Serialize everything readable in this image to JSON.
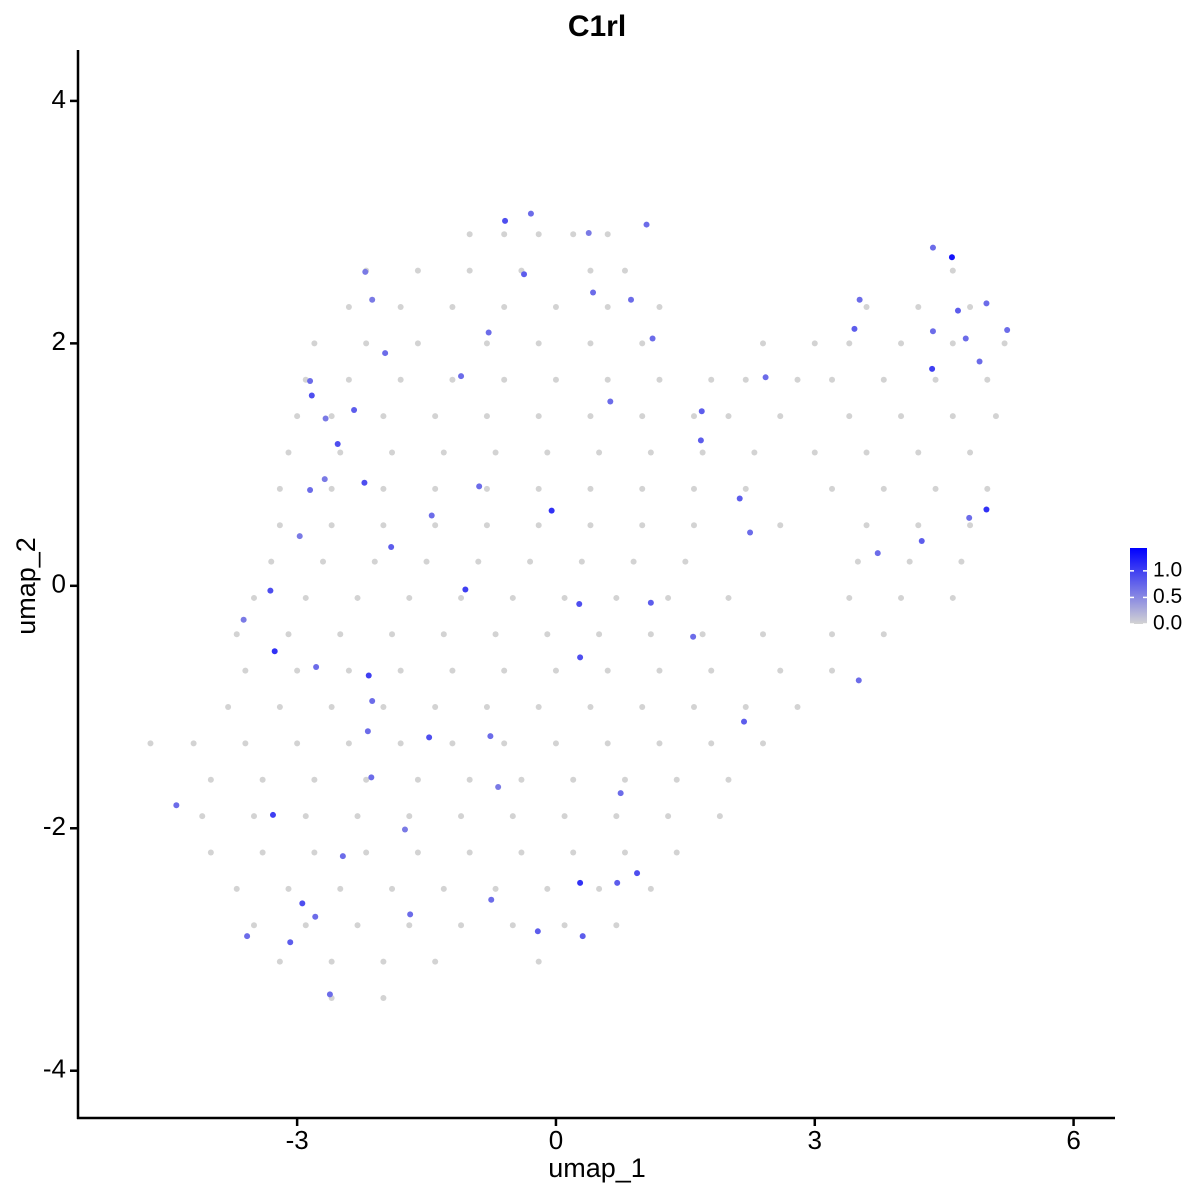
{
  "chart_data": {
    "type": "scatter",
    "title": "C1rl",
    "xlabel": "umap_1",
    "ylabel": "umap_2",
    "xlim": [
      -5.54,
      6.48
    ],
    "ylim": [
      -4.39,
      4.42
    ],
    "xticks": [
      -3,
      0,
      3,
      6
    ],
    "yticks": [
      -4,
      -2,
      0,
      2,
      4
    ],
    "grid": false,
    "colorbar": {
      "lim": [
        0,
        1.43
      ],
      "low_color": "#d3d3d3",
      "high_color": "#0000ff",
      "ticks": [
        {
          "value": 0,
          "label": "0.0"
        },
        {
          "value": 0.5,
          "label": "0.5"
        },
        {
          "value": 1,
          "label": "1.0"
        }
      ]
    },
    "x": [
      -1.0,
      -0.6,
      -0.2,
      0.2,
      0.6,
      -2.2,
      -1.6,
      -1.0,
      -0.4,
      0.4,
      0.8,
      4.6,
      -2.4,
      -1.8,
      -1.2,
      -0.6,
      0,
      0.6,
      1.2,
      3.6,
      4.2,
      4.8,
      -2.8,
      -2.2,
      -1.6,
      -0.8,
      -0.2,
      0.4,
      1.0,
      2.4,
      3.0,
      3.4,
      4.0,
      4.6,
      5.2,
      -2.9,
      -2.4,
      -1.8,
      -1.2,
      -0.6,
      0,
      0.6,
      1.2,
      1.8,
      2.2,
      2.8,
      3.2,
      3.8,
      4.4,
      5.0,
      -3.0,
      -2.6,
      -2.0,
      -1.4,
      -0.8,
      -0.2,
      0.4,
      1.0,
      1.6,
      2.0,
      2.6,
      3.4,
      4.0,
      4.6,
      5.1,
      -3.1,
      -2.5,
      -1.9,
      -1.3,
      -0.7,
      -0.1,
      0.5,
      1.1,
      1.7,
      2.3,
      3.0,
      3.6,
      4.2,
      4.8,
      -3.2,
      -2.6,
      -2.0,
      -1.4,
      -0.8,
      -0.2,
      0.4,
      1.0,
      1.6,
      2.2,
      3.2,
      3.8,
      4.4,
      5.0,
      -3.2,
      -2.6,
      -2.0,
      -1.4,
      -0.8,
      -0.2,
      0.4,
      1.0,
      1.6,
      2.6,
      3.6,
      4.2,
      4.8,
      -3.3,
      -2.7,
      -2.1,
      -1.5,
      -0.9,
      -0.3,
      0.3,
      0.9,
      1.5,
      3.5,
      4.1,
      4.7,
      -3.5,
      -2.9,
      -2.3,
      -1.7,
      -1.1,
      -0.5,
      0.1,
      0.7,
      1.3,
      2.0,
      3.4,
      4.0,
      4.6,
      -3.7,
      -3.1,
      -2.5,
      -1.9,
      -1.3,
      -0.7,
      -0.1,
      0.5,
      1.1,
      1.7,
      2.4,
      3.2,
      3.8,
      -3.6,
      -3.0,
      -2.4,
      -1.8,
      -1.2,
      -0.6,
      0,
      0.6,
      1.2,
      1.8,
      2.6,
      3.2,
      -3.8,
      -3.2,
      -2.6,
      -2.0,
      -1.4,
      -0.8,
      -0.2,
      0.4,
      1.0,
      1.6,
      2.2,
      2.8,
      -4.7,
      -4.2,
      -3.6,
      -3.0,
      -2.4,
      -1.8,
      -1.2,
      -0.6,
      0,
      0.6,
      1.2,
      1.8,
      2.4,
      -4.0,
      -3.4,
      -2.8,
      -2.2,
      -1.6,
      -1.0,
      -0.4,
      0.2,
      0.8,
      1.4,
      2.0,
      -4.1,
      -3.5,
      -2.9,
      -2.3,
      -1.7,
      -1.1,
      -0.5,
      0.1,
      0.7,
      1.3,
      1.9,
      -4.0,
      -3.4,
      -2.8,
      -2.2,
      -1.6,
      -1.0,
      -0.4,
      0.2,
      0.8,
      1.4,
      -3.7,
      -3.1,
      -2.5,
      -1.9,
      -1.3,
      -0.7,
      -0.1,
      0.5,
      1.1,
      -3.5,
      -2.9,
      -2.3,
      -1.7,
      -1.1,
      -0.5,
      0.1,
      0.7,
      -3.2,
      -2.6,
      -2.0,
      -1.4,
      -0.2,
      -2.6,
      -2.0,
      -0.59,
      -0.29,
      0.38,
      1.05,
      4.59,
      4.37,
      4.99,
      4.66,
      5.23,
      4.75,
      4.91,
      4.37,
      3.46,
      3.52,
      2.43,
      1.69,
      0.63,
      1.12,
      0.87,
      0.43,
      -0.37,
      -0.78,
      -1.1,
      -1.98,
      -2.13,
      -2.21,
      -2.85,
      -2.83,
      -2.67,
      -2.34,
      -2.53,
      -2.68,
      -2.85,
      -2.22,
      -1.44,
      -1.91,
      -2.97,
      -3.31,
      -3.62,
      -3.26,
      -2.78,
      -2.17,
      -2.13,
      -2.18,
      -1.47,
      -0.76,
      -0.67,
      -1.05,
      0.27,
      0.28,
      1.1,
      2.18,
      2.13,
      2.25,
      1.68,
      -0.05,
      -0.89,
      3.51,
      3.73,
      4.24,
      4.99,
      4.79,
      4.36,
      -4.4,
      -3.58,
      -3.08,
      -3.28,
      -2.94,
      -2.79,
      -2.62,
      -2.47,
      -2.14,
      -1.75,
      -1.69,
      -0.75,
      -0.21,
      0.28,
      0.31,
      0.71,
      0.94,
      0.75,
      1.59
    ],
    "values": [
      2.9,
      2.9,
      2.9,
      2.9,
      2.9,
      2.6,
      2.6,
      2.6,
      2.6,
      2.6,
      2.6,
      2.6,
      2.3,
      2.3,
      2.3,
      2.3,
      2.3,
      2.3,
      2.3,
      2.3,
      2.3,
      2.3,
      2.0,
      2.0,
      2.0,
      2.0,
      2.0,
      2.0,
      2.0,
      2.0,
      2.0,
      2.0,
      2.0,
      2.0,
      2.0,
      1.7,
      1.7,
      1.7,
      1.7,
      1.7,
      1.7,
      1.7,
      1.7,
      1.7,
      1.7,
      1.7,
      1.7,
      1.7,
      1.7,
      1.7,
      1.4,
      1.4,
      1.4,
      1.4,
      1.4,
      1.4,
      1.4,
      1.4,
      1.4,
      1.4,
      1.4,
      1.4,
      1.4,
      1.4,
      1.4,
      1.1,
      1.1,
      1.1,
      1.1,
      1.1,
      1.1,
      1.1,
      1.1,
      1.1,
      1.1,
      1.1,
      1.1,
      1.1,
      1.1,
      0.8,
      0.8,
      0.8,
      0.8,
      0.8,
      0.8,
      0.8,
      0.8,
      0.8,
      0.8,
      0.8,
      0.8,
      0.8,
      0.8,
      0.5,
      0.5,
      0.5,
      0.5,
      0.5,
      0.5,
      0.5,
      0.5,
      0.5,
      0.5,
      0.5,
      0.5,
      0.5,
      0.2,
      0.2,
      0.2,
      0.2,
      0.2,
      0.2,
      0.2,
      0.2,
      0.2,
      0.2,
      0.2,
      0.2,
      -0.1,
      -0.1,
      -0.1,
      -0.1,
      -0.1,
      -0.1,
      -0.1,
      -0.1,
      -0.1,
      -0.1,
      -0.1,
      -0.1,
      -0.1,
      -0.4,
      -0.4,
      -0.4,
      -0.4,
      -0.4,
      -0.4,
      -0.4,
      -0.4,
      -0.4,
      -0.4,
      -0.4,
      -0.4,
      -0.4,
      -0.7,
      -0.7,
      -0.7,
      -0.7,
      -0.7,
      -0.7,
      -0.7,
      -0.7,
      -0.7,
      -0.7,
      -0.7,
      -0.7,
      -1.0,
      -1.0,
      -1.0,
      -1.0,
      -1.0,
      -1.0,
      -1.0,
      -1.0,
      -1.0,
      -1.0,
      -1.0,
      -1.0,
      -1.3,
      -1.3,
      -1.3,
      -1.3,
      -1.3,
      -1.3,
      -1.3,
      -1.3,
      -1.3,
      -1.3,
      -1.3,
      -1.3,
      -1.3,
      -1.6,
      -1.6,
      -1.6,
      -1.6,
      -1.6,
      -1.6,
      -1.6,
      -1.6,
      -1.6,
      -1.6,
      -1.6,
      -1.9,
      -1.9,
      -1.9,
      -1.9,
      -1.9,
      -1.9,
      -1.9,
      -1.9,
      -1.9,
      -1.9,
      -1.9,
      -2.2,
      -2.2,
      -2.2,
      -2.2,
      -2.2,
      -2.2,
      -2.2,
      -2.2,
      -2.2,
      -2.2,
      -2.5,
      -2.5,
      -2.5,
      -2.5,
      -2.5,
      -2.5,
      -2.5,
      -2.5,
      -2.5,
      -2.8,
      -2.8,
      -2.8,
      -2.8,
      -2.8,
      -2.8,
      -2.8,
      -2.8,
      -3.1,
      -3.1,
      -3.1,
      -3.1,
      -3.1,
      -3.4,
      -3.4,
      3.01,
      3.07,
      2.91,
      2.98,
      2.71,
      2.79,
      2.33,
      2.27,
      2.11,
      2.04,
      1.85,
      2.1,
      2.12,
      2.36,
      1.72,
      1.44,
      1.52,
      2.04,
      2.36,
      2.42,
      2.57,
      2.09,
      1.73,
      1.92,
      2.36,
      2.59,
      1.69,
      1.57,
      1.38,
      1.45,
      1.17,
      0.88,
      0.79,
      0.85,
      0.58,
      0.32,
      0.41,
      -0.04,
      -0.28,
      -0.54,
      -0.67,
      -0.74,
      -0.95,
      -1.2,
      -1.25,
      -1.24,
      -1.66,
      -0.03,
      -0.15,
      -0.59,
      -0.14,
      -1.12,
      0.72,
      0.44,
      1.2,
      0.62,
      0.82,
      -0.78,
      0.27,
      0.37,
      0.63,
      0.56,
      1.79,
      -1.81,
      -2.89,
      -2.94,
      -1.89,
      -2.62,
      -2.73,
      -3.37,
      -2.23,
      -1.58,
      -2.01,
      -2.71,
      -2.59,
      -2.85,
      -2.45,
      -2.89,
      -2.45,
      -2.37,
      -1.71,
      -0.42
    ],
    "expression": [
      0,
      0,
      0,
      0,
      0,
      0,
      0,
      0,
      0,
      0,
      0,
      0,
      0,
      0,
      0,
      0,
      0,
      0,
      0,
      0,
      0,
      0,
      0,
      0,
      0,
      0,
      0,
      0,
      0,
      0,
      0,
      0,
      0,
      0,
      0,
      0,
      0,
      0,
      0,
      0,
      0,
      0,
      0,
      0,
      0,
      0,
      0,
      0,
      0,
      0,
      0,
      0,
      0,
      0,
      0,
      0,
      0,
      0,
      0,
      0,
      0,
      0,
      0,
      0,
      0,
      0,
      0,
      0,
      0,
      0,
      0,
      0,
      0,
      0,
      0,
      0,
      0,
      0,
      0,
      0,
      0,
      0,
      0,
      0,
      0,
      0,
      0,
      0,
      0,
      0,
      0,
      0,
      0,
      0,
      0,
      0,
      0,
      0,
      0,
      0,
      0,
      0,
      0,
      0,
      0,
      0,
      0,
      0,
      0,
      0,
      0,
      0,
      0,
      0,
      0,
      0,
      0,
      0,
      0,
      0,
      0,
      0,
      0,
      0,
      0,
      0,
      0,
      0,
      0,
      0,
      0,
      0,
      0,
      0,
      0,
      0,
      0,
      0,
      0,
      0,
      0,
      0,
      0,
      0,
      0,
      0,
      0,
      0,
      0,
      0,
      0,
      0,
      0,
      0,
      0,
      0,
      0,
      0,
      0,
      0,
      0,
      0,
      0,
      0,
      0,
      0,
      0,
      0,
      0,
      0,
      0,
      0,
      0,
      0,
      0,
      0,
      0,
      0,
      0,
      0,
      0,
      0,
      0,
      0,
      0,
      0,
      0,
      0,
      0,
      0,
      0,
      0,
      0,
      0,
      0,
      0,
      0,
      0,
      0,
      0,
      0,
      0,
      0,
      0,
      0,
      0,
      0,
      0,
      0,
      0,
      0,
      0,
      0,
      0,
      0,
      0,
      0,
      0,
      0,
      0,
      0,
      0,
      0,
      0,
      0,
      0,
      0,
      0,
      0,
      0,
      0,
      0,
      0,
      0,
      0,
      0,
      0,
      0.9,
      0.7,
      0.6,
      0.7,
      1.3,
      0.7,
      0.7,
      0.8,
      0.7,
      0.7,
      0.7,
      0.7,
      0.8,
      0.7,
      0.7,
      0.8,
      0.7,
      0.7,
      0.7,
      0.7,
      0.8,
      0.7,
      0.7,
      0.7,
      0.6,
      0.6,
      0.7,
      0.9,
      0.6,
      0.8,
      0.9,
      0.6,
      0.7,
      0.9,
      0.7,
      0.8,
      0.6,
      0.9,
      0.6,
      1.1,
      0.7,
      1.0,
      0.7,
      0.7,
      0.9,
      0.7,
      0.6,
      1.0,
      0.9,
      0.9,
      0.8,
      0.8,
      0.8,
      0.7,
      0.8,
      1.1,
      0.7,
      0.7,
      0.7,
      0.8,
      1.1,
      0.7,
      1.0,
      0.7,
      0.7,
      0.8,
      1.0,
      0.9,
      0.7,
      0.7,
      0.7,
      0.7,
      0.6,
      0.7,
      0.7,
      0.8,
      1.1,
      0.8,
      0.8,
      0.9,
      0.7,
      0.7
    ]
  }
}
